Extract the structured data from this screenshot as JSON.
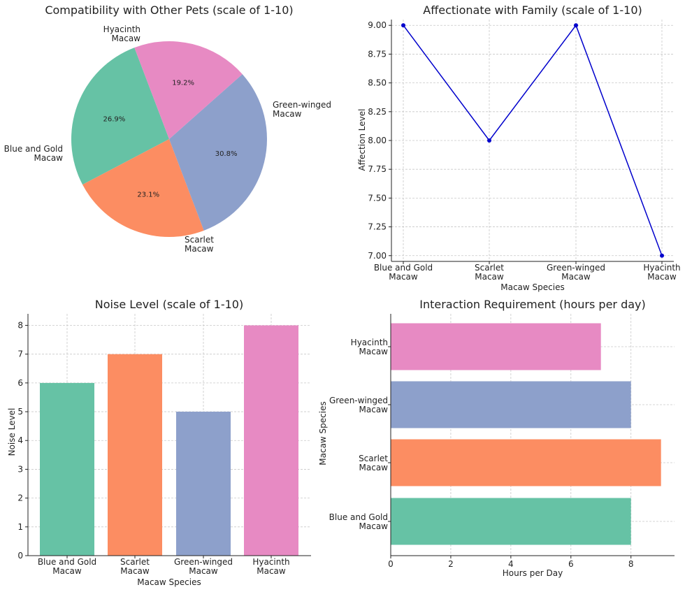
{
  "colors": {
    "blue_gold": "#66c2a5",
    "scarlet": "#fc8d62",
    "green_winged": "#8da0cb",
    "hyacinth": "#e78ac3",
    "line": "#0000cc"
  },
  "chart_data": [
    {
      "type": "pie",
      "title": "Compatibility with Other Pets (scale of 1-10)",
      "slices": [
        {
          "label": [
            "Blue and Gold",
            "Macaw"
          ],
          "value": 7,
          "pct": "26.9%"
        },
        {
          "label": [
            "Scarlet",
            "Macaw"
          ],
          "value": 6,
          "pct": "23.1%"
        },
        {
          "label": [
            "Green-winged",
            "Macaw"
          ],
          "value": 8,
          "pct": "30.8%"
        },
        {
          "label": [
            "Hyacinth",
            "Macaw"
          ],
          "value": 5,
          "pct": "19.2%"
        }
      ]
    },
    {
      "type": "line",
      "title": "Affectionate with Family (scale of 1-10)",
      "categories": [
        [
          "Blue and Gold",
          "Macaw"
        ],
        [
          "Scarlet",
          "Macaw"
        ],
        [
          "Green-winged",
          "Macaw"
        ],
        [
          "Hyacinth",
          "Macaw"
        ]
      ],
      "values": [
        9,
        8,
        9,
        7
      ],
      "xlabel": "Macaw Species",
      "ylabel": "Affection Level",
      "ylim": [
        6.95,
        9.05
      ],
      "yticks": [
        "7.00",
        "7.25",
        "7.50",
        "7.75",
        "8.00",
        "8.25",
        "8.50",
        "8.75",
        "9.00"
      ],
      "grid": true
    },
    {
      "type": "bar",
      "title": "Noise Level (scale of 1-10)",
      "categories": [
        [
          "Blue and Gold",
          "Macaw"
        ],
        [
          "Scarlet",
          "Macaw"
        ],
        [
          "Green-winged",
          "Macaw"
        ],
        [
          "Hyacinth",
          "Macaw"
        ]
      ],
      "values": [
        6,
        7,
        5,
        8
      ],
      "xlabel": "Macaw Species",
      "ylabel": "Noise Level",
      "ylim": [
        0,
        8.4
      ],
      "yticks": [
        "0",
        "1",
        "2",
        "3",
        "4",
        "5",
        "6",
        "7",
        "8"
      ],
      "grid": true
    },
    {
      "type": "barh",
      "title": "Interaction Requirement (hours per day)",
      "categories": [
        [
          "Blue and Gold",
          "Macaw"
        ],
        [
          "Scarlet",
          "Macaw"
        ],
        [
          "Green-winged",
          "Macaw"
        ],
        [
          "Hyacinth",
          "Macaw"
        ]
      ],
      "values": [
        8,
        9,
        8,
        7
      ],
      "xlabel": "Hours per Day",
      "ylabel": "Macaw Species",
      "xlim": [
        0,
        9.45
      ],
      "xticks": [
        "0",
        "2",
        "4",
        "6",
        "8"
      ],
      "grid": true
    }
  ]
}
